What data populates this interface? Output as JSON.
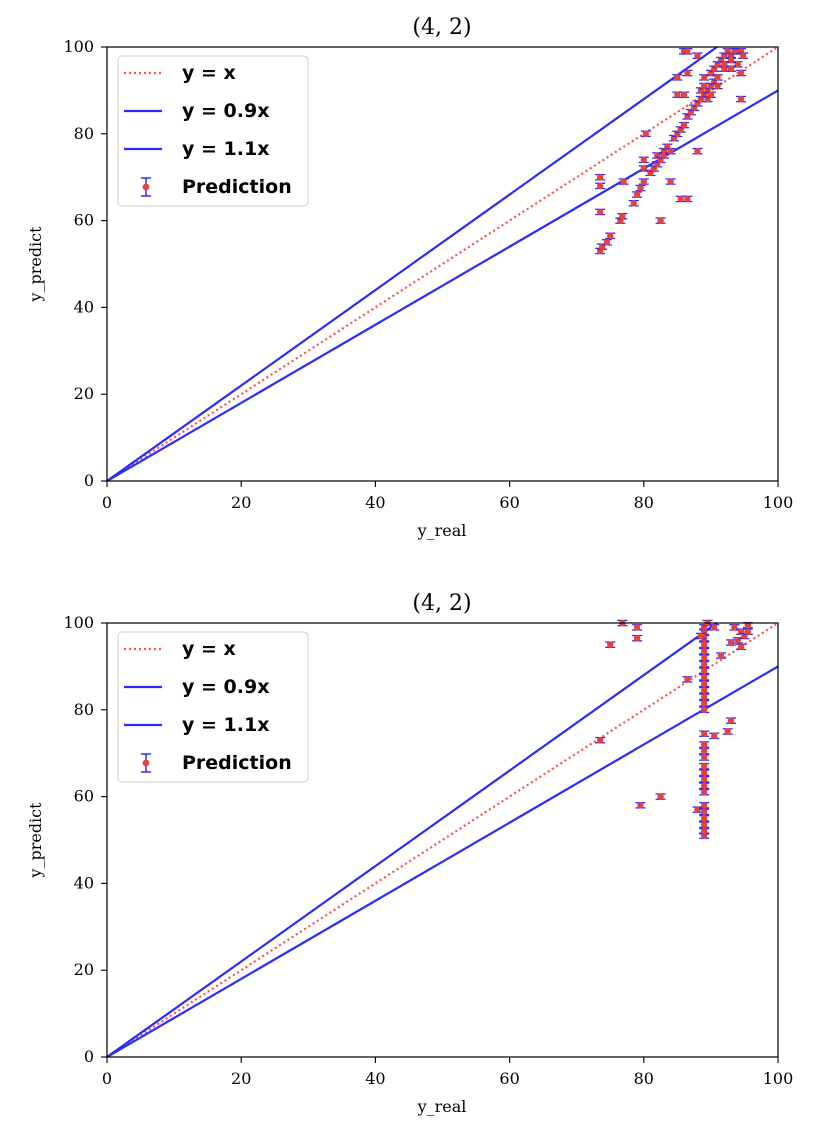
{
  "chart_data": [
    {
      "type": "scatter",
      "title": "(4, 2)",
      "xlabel": "y_real",
      "ylabel": "y_predict",
      "xlim": [
        0,
        100
      ],
      "ylim": [
        0,
        100
      ],
      "xticks": [
        "0",
        "20",
        "40",
        "60",
        "80",
        "100"
      ],
      "yticks": [
        "0",
        "20",
        "40",
        "60",
        "80",
        "100"
      ],
      "grid": false,
      "legend_position": "top-left",
      "legend": [
        {
          "label": "y = x",
          "style": "dotted",
          "color": "#ff4d4d"
        },
        {
          "label": "y = 0.9x",
          "style": "solid",
          "color": "#2b2bff"
        },
        {
          "label": "y = 1.1x",
          "style": "solid",
          "color": "#2b2bff"
        },
        {
          "label": "Prediction",
          "style": "errorbar",
          "color": "#e8413b"
        }
      ],
      "reference_lines": [
        {
          "name": "y = x",
          "slope": 1.0
        },
        {
          "name": "y = 0.9x",
          "slope": 0.9
        },
        {
          "name": "y = 1.1x",
          "slope": 1.1
        }
      ],
      "series": [
        {
          "name": "Prediction",
          "error": 0.6,
          "points": [
            [
              73.5,
              53
            ],
            [
              73.8,
              54
            ],
            [
              74.5,
              55
            ],
            [
              75,
              56.5
            ],
            [
              73.5,
              62
            ],
            [
              73.5,
              68
            ],
            [
              73.5,
              70
            ],
            [
              76.5,
              60
            ],
            [
              76.8,
              61
            ],
            [
              77,
              69
            ],
            [
              78.5,
              64
            ],
            [
              79,
              66
            ],
            [
              79.5,
              67.5
            ],
            [
              80,
              69
            ],
            [
              80,
              72
            ],
            [
              80,
              74
            ],
            [
              80.3,
              80
            ],
            [
              81,
              71
            ],
            [
              81.5,
              72
            ],
            [
              82,
              73
            ],
            [
              82,
              75
            ],
            [
              82.5,
              74
            ],
            [
              83,
              76
            ],
            [
              83,
              75
            ],
            [
              83.5,
              77
            ],
            [
              84,
              76
            ],
            [
              84,
              69
            ],
            [
              82.5,
              60
            ],
            [
              84.5,
              79
            ],
            [
              85,
              80
            ],
            [
              85.5,
              81
            ],
            [
              86,
              82
            ],
            [
              86.5,
              84
            ],
            [
              85.5,
              65
            ],
            [
              86.5,
              65
            ],
            [
              88,
              76
            ],
            [
              85,
              89
            ],
            [
              86,
              89
            ],
            [
              85,
              93
            ],
            [
              86.5,
              94
            ],
            [
              86,
              99
            ],
            [
              86.5,
              99
            ],
            [
              88,
              98
            ],
            [
              87,
              85
            ],
            [
              87.5,
              86
            ],
            [
              88,
              87
            ],
            [
              88.5,
              88
            ],
            [
              89,
              89
            ],
            [
              89.5,
              90
            ],
            [
              90,
              91
            ],
            [
              90.5,
              92
            ],
            [
              88.5,
              90
            ],
            [
              89,
              91
            ],
            [
              89,
              93
            ],
            [
              89.5,
              88
            ],
            [
              90,
              94
            ],
            [
              90.5,
              95
            ],
            [
              91,
              96
            ],
            [
              91.5,
              97
            ],
            [
              92,
              98
            ],
            [
              92.5,
              99
            ],
            [
              93,
              98
            ],
            [
              93.5,
              99
            ],
            [
              94,
              99
            ],
            [
              94.5,
              99
            ],
            [
              94.8,
              98
            ],
            [
              94,
              96
            ],
            [
              93,
              97
            ],
            [
              92,
              95
            ],
            [
              91,
              93
            ],
            [
              90,
              89
            ],
            [
              91,
              91
            ],
            [
              92,
              96
            ],
            [
              93,
              95
            ],
            [
              94.5,
              94
            ],
            [
              94.5,
              88
            ]
          ]
        }
      ]
    },
    {
      "type": "scatter",
      "title": "(4, 2)",
      "xlabel": "y_real",
      "ylabel": "y_predict",
      "xlim": [
        0,
        100
      ],
      "ylim": [
        0,
        100
      ],
      "xticks": [
        "0",
        "20",
        "40",
        "60",
        "80",
        "100"
      ],
      "yticks": [
        "0",
        "20",
        "40",
        "60",
        "80",
        "100"
      ],
      "grid": false,
      "legend_position": "top-left",
      "legend": [
        {
          "label": "y = x",
          "style": "dotted",
          "color": "#ff4d4d"
        },
        {
          "label": "y = 0.9x",
          "style": "solid",
          "color": "#2b2bff"
        },
        {
          "label": "y = 1.1x",
          "style": "solid",
          "color": "#2b2bff"
        },
        {
          "label": "Prediction",
          "style": "errorbar",
          "color": "#e8413b"
        }
      ],
      "reference_lines": [
        {
          "name": "y = x",
          "slope": 1.0
        },
        {
          "name": "y = 0.9x",
          "slope": 0.9
        },
        {
          "name": "y = 1.1x",
          "slope": 1.1
        }
      ],
      "series": [
        {
          "name": "Prediction",
          "error": 0.6,
          "points": [
            [
              73.5,
              73
            ],
            [
              75,
              95
            ],
            [
              76.8,
              100
            ],
            [
              79,
              96.5
            ],
            [
              79,
              99
            ],
            [
              79.5,
              58
            ],
            [
              82.5,
              60
            ],
            [
              86.5,
              87
            ],
            [
              88,
              57
            ],
            [
              89,
              51
            ],
            [
              89,
              52
            ],
            [
              89,
              53.5
            ],
            [
              89,
              55
            ],
            [
              89,
              56.5
            ],
            [
              89,
              58
            ],
            [
              89,
              61
            ],
            [
              89,
              62.5
            ],
            [
              89,
              64
            ],
            [
              89,
              65.5
            ],
            [
              89,
              67
            ],
            [
              89,
              69
            ],
            [
              89,
              70.5
            ],
            [
              89,
              72
            ],
            [
              89,
              74.5
            ],
            [
              89,
              80
            ],
            [
              89,
              81.5
            ],
            [
              89,
              83
            ],
            [
              89,
              84.5
            ],
            [
              89,
              86
            ],
            [
              89,
              87.5
            ],
            [
              89,
              89
            ],
            [
              89,
              90.5
            ],
            [
              89,
              92
            ],
            [
              89,
              93.5
            ],
            [
              89,
              95
            ],
            [
              89,
              96.5
            ],
            [
              89,
              98
            ],
            [
              89,
              99
            ],
            [
              89.5,
              100
            ],
            [
              88.5,
              97
            ],
            [
              90.5,
              74
            ],
            [
              90.5,
              99
            ],
            [
              91.5,
              92.5
            ],
            [
              92.5,
              75
            ],
            [
              93,
              77.5
            ],
            [
              93,
              95.5
            ],
            [
              93.5,
              99
            ],
            [
              94,
              96
            ],
            [
              94.5,
              98
            ],
            [
              94.5,
              94.5
            ],
            [
              95,
              97
            ],
            [
              95.5,
              99.5
            ],
            [
              95.5,
              98
            ]
          ]
        }
      ]
    }
  ]
}
